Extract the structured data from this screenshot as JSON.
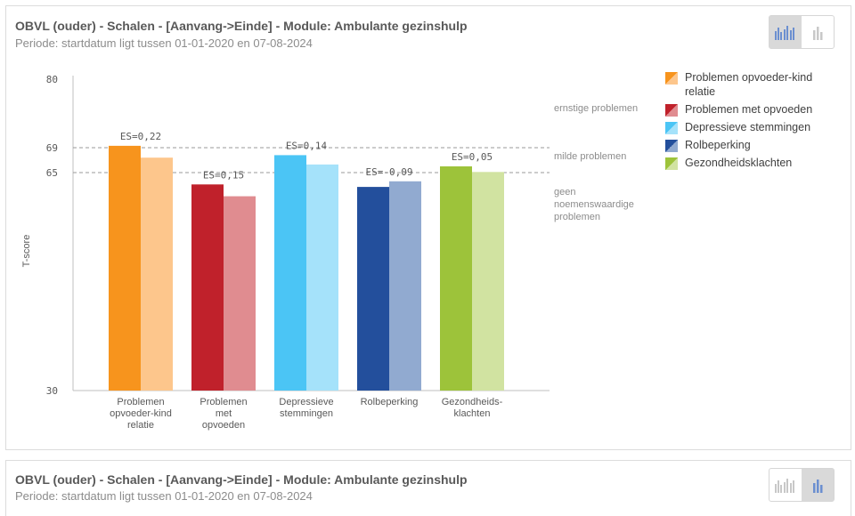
{
  "panels": [
    {
      "title": "OBVL (ouder) - Schalen - [Aanvang->Einde] - Module: Ambulante gezinshulp",
      "subtitle": "Periode: startdatum ligt tussen 01-01-2020 en 07-08-2024",
      "active_view": "grouped"
    },
    {
      "title": "OBVL (ouder) - Schalen - [Aanvang->Einde] - Module: Ambulante gezinshulp",
      "subtitle": "Periode: startdatum ligt tussen 01-01-2020 en 07-08-2024",
      "active_view": "single"
    }
  ],
  "chart_data": {
    "type": "bar",
    "ylabel": "T-score",
    "ylim": [
      30,
      80
    ],
    "yticks": [
      30,
      65,
      69,
      80
    ],
    "reference_lines": [
      65,
      69
    ],
    "zones": [
      "ernstige problemen",
      "milde problemen",
      "geen noemenswaardige problemen"
    ],
    "categories": [
      "Problemen opvoeder-kind relatie",
      "Problemen met opvoeden",
      "Depressieve stemmingen",
      "Rolbeperking",
      "Gezondheidsklachten"
    ],
    "series": [
      {
        "values": [
          69.3,
          63.1,
          67.8,
          62.7,
          66.0
        ]
      },
      {
        "values": [
          67.4,
          61.2,
          66.3,
          63.6,
          65.1
        ]
      }
    ],
    "effect_sizes": [
      "ES=0,22",
      "ES=0,15",
      "ES=0,14",
      "ES=-0,09",
      "ES=0,05"
    ],
    "colors": {
      "aanvang": [
        "#F7941D",
        "#C0212B",
        "#4BC5F5",
        "#234F9C",
        "#9DC33A"
      ],
      "einde": [
        "#FDC68C",
        "#E08C90",
        "#A5E2FA",
        "#91AAD0",
        "#D1E3A1"
      ]
    },
    "legend": [
      {
        "label": "Problemen opvoeder-kind relatie",
        "colors": [
          "#F7941D",
          "#FDC68C"
        ]
      },
      {
        "label": "Problemen met opvoeden",
        "colors": [
          "#C0212B",
          "#E08C90"
        ]
      },
      {
        "label": "Depressieve stemmingen",
        "colors": [
          "#4BC5F5",
          "#A5E2FA"
        ]
      },
      {
        "label": "Rolbeperking",
        "colors": [
          "#234F9C",
          "#91AAD0"
        ]
      },
      {
        "label": "Gezondheidsklachten",
        "colors": [
          "#9DC33A",
          "#D1E3A1"
        ]
      }
    ],
    "legend_position": "right",
    "grid": false
  }
}
